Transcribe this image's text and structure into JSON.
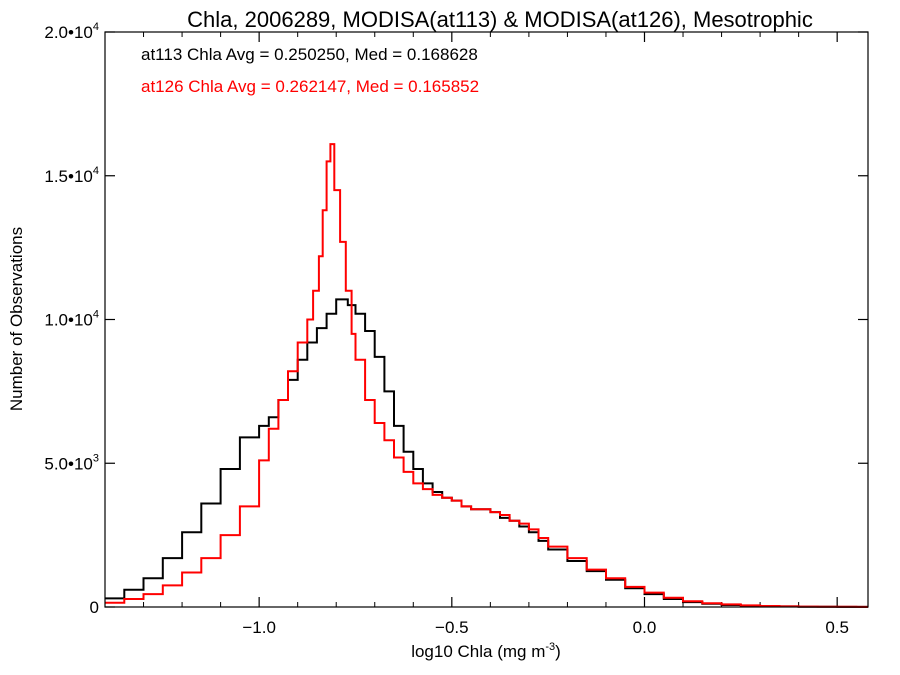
{
  "chart_data": {
    "type": "histogram-step",
    "title": "Chla, 2006289, MODISA(at113) & MODISA(at126), Mesotrophic",
    "xlabel": "log10 Chla (mg m",
    "xlabel_sup": "-3",
    "xlabel_close": ")",
    "ylabel": "Number of Observations",
    "xlim": [
      -1.4,
      0.58
    ],
    "ylim": [
      0,
      20000
    ],
    "x_ticks": [
      {
        "value": -1.0,
        "label": "−1.0"
      },
      {
        "value": -0.5,
        "label": "−0.5"
      },
      {
        "value": 0.0,
        "label": "0.0"
      },
      {
        "value": 0.5,
        "label": "0.5"
      }
    ],
    "y_ticks": [
      {
        "value": 0,
        "mant": "0",
        "exp": ""
      },
      {
        "value": 5000,
        "mant": "5.0•10",
        "exp": "3"
      },
      {
        "value": 10000,
        "mant": "1.0•10",
        "exp": "4"
      },
      {
        "value": 15000,
        "mant": "1.5•10",
        "exp": "4"
      },
      {
        "value": 20000,
        "mant": "2.0•10",
        "exp": "4"
      }
    ],
    "grid": false,
    "annotations": [
      {
        "text": "at113 Chla Avg = 0.250250, Med = 0.168628",
        "color": "#000000"
      },
      {
        "text": "at126 Chla Avg = 0.262147, Med = 0.165852",
        "color": "#ff0000"
      }
    ],
    "series": [
      {
        "color": "#000000",
        "x": [
          -1.4,
          -1.35,
          -1.3,
          -1.25,
          -1.2,
          -1.15,
          -1.1,
          -1.05,
          -1.0,
          -0.975,
          -0.95,
          -0.925,
          -0.9,
          -0.875,
          -0.85,
          -0.825,
          -0.8,
          -0.785,
          -0.77,
          -0.75,
          -0.725,
          -0.7,
          -0.675,
          -0.65,
          -0.625,
          -0.6,
          -0.575,
          -0.55,
          -0.525,
          -0.5,
          -0.475,
          -0.45,
          -0.425,
          -0.4,
          -0.375,
          -0.35,
          -0.325,
          -0.3,
          -0.275,
          -0.25,
          -0.2,
          -0.15,
          -0.1,
          -0.05,
          0.0,
          0.05,
          0.1,
          0.15,
          0.2,
          0.25,
          0.3,
          0.35,
          0.4,
          0.45,
          0.5,
          0.55,
          0.58
        ],
        "y": [
          300,
          600,
          1000,
          1700,
          2600,
          3600,
          4800,
          5900,
          6300,
          6600,
          7200,
          7900,
          8600,
          9200,
          9700,
          10200,
          10700,
          10700,
          10500,
          10200,
          9600,
          8700,
          7500,
          6300,
          5400,
          4800,
          4300,
          4000,
          3800,
          3700,
          3500,
          3400,
          3400,
          3300,
          3100,
          3000,
          2800,
          2600,
          2300,
          2000,
          1600,
          1250,
          950,
          650,
          450,
          280,
          170,
          110,
          70,
          45,
          30,
          20,
          12,
          8,
          5,
          3,
          2
        ]
      },
      {
        "color": "#ff0000",
        "x": [
          -1.4,
          -1.35,
          -1.3,
          -1.25,
          -1.2,
          -1.15,
          -1.1,
          -1.05,
          -1.0,
          -0.975,
          -0.95,
          -0.925,
          -0.9,
          -0.875,
          -0.86,
          -0.845,
          -0.835,
          -0.825,
          -0.815,
          -0.805,
          -0.79,
          -0.775,
          -0.76,
          -0.75,
          -0.725,
          -0.7,
          -0.675,
          -0.65,
          -0.625,
          -0.6,
          -0.575,
          -0.55,
          -0.525,
          -0.5,
          -0.475,
          -0.45,
          -0.425,
          -0.4,
          -0.375,
          -0.35,
          -0.325,
          -0.3,
          -0.275,
          -0.25,
          -0.2,
          -0.15,
          -0.1,
          -0.05,
          0.0,
          0.05,
          0.1,
          0.15,
          0.2,
          0.25,
          0.3,
          0.35,
          0.4,
          0.45,
          0.5,
          0.55,
          0.58
        ],
        "y": [
          150,
          280,
          450,
          750,
          1200,
          1700,
          2500,
          3500,
          5100,
          6200,
          7200,
          8200,
          9200,
          10000,
          11000,
          12200,
          13800,
          15500,
          16100,
          14500,
          12700,
          11000,
          9500,
          8600,
          7200,
          6400,
          5800,
          5200,
          4700,
          4300,
          4100,
          3900,
          3800,
          3700,
          3500,
          3400,
          3400,
          3300,
          3200,
          3000,
          2900,
          2700,
          2400,
          2100,
          1700,
          1300,
          1000,
          700,
          500,
          320,
          200,
          130,
          90,
          55,
          35,
          22,
          14,
          9,
          6,
          4,
          2
        ]
      }
    ]
  }
}
